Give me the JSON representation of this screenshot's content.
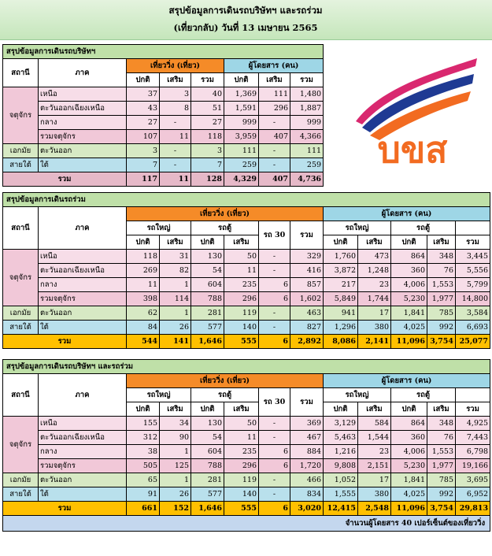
{
  "header": {
    "line1": "สรุปข้อมูลการเดินรถบริษัทฯ และรถร่วม",
    "line2": "(เที่ยวกลับ) วันที่ 13 เมษายน  2565"
  },
  "logo": {
    "text": "บขส",
    "colors": [
      "#f26b21",
      "#1f3a93",
      "#d9286f"
    ]
  },
  "table1": {
    "title": "สรุปข้อมูลการเดินรถบริษัทฯ",
    "h_station": "สถานี",
    "h_region": "ภาค",
    "h_trip": "เที่ยววิ่ง (เที่ยว)",
    "h_pax": "ผู้โดยสาร (คน)",
    "sub": [
      "ปกติ",
      "เสริม",
      "รวม",
      "ปกติ",
      "เสริม",
      "รวม"
    ],
    "mochit": "จตุจักร",
    "rows": [
      {
        "region": "เหนือ",
        "v": [
          "37",
          "3",
          "40",
          "1,369",
          "111",
          "1,480"
        ]
      },
      {
        "region": "ตะวันออกเฉียงเหนือ",
        "v": [
          "43",
          "8",
          "51",
          "1,591",
          "296",
          "1,887"
        ]
      },
      {
        "region": "กลาง",
        "v": [
          "27",
          "-",
          "27",
          "999",
          "-",
          "999"
        ]
      },
      {
        "region": "รวมจตุจักร",
        "v": [
          "107",
          "11",
          "118",
          "3,959",
          "407",
          "4,366"
        ]
      }
    ],
    "ekamai": {
      "station": "เอกมัย",
      "region": "ตะวันออก",
      "v": [
        "3",
        "-",
        "3",
        "111",
        "-",
        "111"
      ]
    },
    "saitai": {
      "station": "สายใต้",
      "region": "ใต้",
      "v": [
        "7",
        "-",
        "7",
        "259",
        "-",
        "259"
      ]
    },
    "total": {
      "label": "รวม",
      "v": [
        "117",
        "11",
        "128",
        "4,329",
        "407",
        "4,736"
      ]
    }
  },
  "table2": {
    "title": "สรุปข้อมูลการเดินรถร่วม",
    "h_station": "สถานี",
    "h_region": "ภาค",
    "h_trip": "เที่ยววิ่ง (เที่ยว)",
    "h_pax": "ผู้โดยสาร (คน)",
    "h_big": "รถใหญ่",
    "h_van": "รถตู้",
    "h_r30": "รถ 30",
    "h_sum": "รวม",
    "sub": [
      "ปกติ",
      "เสริม",
      "ปกติ",
      "เสริม",
      "ปกติ",
      "เสริม",
      "ปกติ",
      "เสริม",
      "รวม"
    ],
    "mochit": "จตุจักร",
    "rows": [
      {
        "region": "เหนือ",
        "v": [
          "118",
          "31",
          "130",
          "50",
          "-",
          "329",
          "1,760",
          "473",
          "864",
          "348",
          "3,445"
        ]
      },
      {
        "region": "ตะวันออกเฉียงเหนือ",
        "v": [
          "269",
          "82",
          "54",
          "11",
          "-",
          "416",
          "3,872",
          "1,248",
          "360",
          "76",
          "5,556"
        ]
      },
      {
        "region": "กลาง",
        "v": [
          "11",
          "1",
          "604",
          "235",
          "6",
          "857",
          "217",
          "23",
          "4,006",
          "1,553",
          "5,799"
        ]
      },
      {
        "region": "รวมจตุจักร",
        "v": [
          "398",
          "114",
          "788",
          "296",
          "6",
          "1,602",
          "5,849",
          "1,744",
          "5,230",
          "1,977",
          "14,800"
        ]
      }
    ],
    "ekamai": {
      "station": "เอกมัย",
      "region": "ตะวันออก",
      "v": [
        "62",
        "1",
        "281",
        "119",
        "-",
        "463",
        "941",
        "17",
        "1,841",
        "785",
        "3,584"
      ]
    },
    "saitai": {
      "station": "สายใต้",
      "region": "ใต้",
      "v": [
        "84",
        "26",
        "577",
        "140",
        "-",
        "827",
        "1,296",
        "380",
        "4,025",
        "992",
        "6,693"
      ]
    },
    "total": {
      "label": "รวม",
      "v": [
        "544",
        "141",
        "1,646",
        "555",
        "6",
        "2,892",
        "8,086",
        "2,141",
        "11,096",
        "3,754",
        "25,077"
      ]
    }
  },
  "table3": {
    "title": "สรุปข้อมูลการเดินรถบริษัทฯ และรถร่วม",
    "h_station": "สถานี",
    "h_region": "ภาค",
    "h_trip": "เที่ยววิ่ง (เที่ยว)",
    "h_pax": "ผู้โดยสาร (คน)",
    "h_big": "รถใหญ่",
    "h_van": "รถตู้",
    "h_r30": "รถ 30",
    "h_sum": "รวม",
    "sub": [
      "ปกติ",
      "เสริม",
      "ปกติ",
      "เสริม",
      "ปกติ",
      "เสริม",
      "ปกติ",
      "เสริม",
      "รวม"
    ],
    "mochit": "จตุจักร",
    "rows": [
      {
        "region": "เหนือ",
        "v": [
          "155",
          "34",
          "130",
          "50",
          "-",
          "369",
          "3,129",
          "584",
          "864",
          "348",
          "4,925"
        ]
      },
      {
        "region": "ตะวันออกเฉียงเหนือ",
        "v": [
          "312",
          "90",
          "54",
          "11",
          "-",
          "467",
          "5,463",
          "1,544",
          "360",
          "76",
          "7,443"
        ]
      },
      {
        "region": "กลาง",
        "v": [
          "38",
          "1",
          "604",
          "235",
          "6",
          "884",
          "1,216",
          "23",
          "4,006",
          "1,553",
          "6,798"
        ]
      },
      {
        "region": "รวมจตุจักร",
        "v": [
          "505",
          "125",
          "788",
          "296",
          "6",
          "1,720",
          "9,808",
          "2,151",
          "5,230",
          "1,977",
          "19,166"
        ]
      }
    ],
    "ekamai": {
      "station": "เอกมัย",
      "region": "ตะวันออก",
      "v": [
        "65",
        "1",
        "281",
        "119",
        "-",
        "466",
        "1,052",
        "17",
        "1,841",
        "785",
        "3,695"
      ]
    },
    "saitai": {
      "station": "สายใต้",
      "region": "ใต้",
      "v": [
        "91",
        "26",
        "577",
        "140",
        "-",
        "834",
        "1,555",
        "380",
        "4,025",
        "992",
        "6,952"
      ]
    },
    "total": {
      "label": "รวม",
      "v": [
        "661",
        "152",
        "1,646",
        "555",
        "6",
        "3,020",
        "12,415",
        "2,548",
        "11,096",
        "3,754",
        "29,813"
      ]
    },
    "note": "จำนวนผู้โดยสาร 40 เปอร์เซ็นต์ของเที่ยววิ่ง"
  }
}
